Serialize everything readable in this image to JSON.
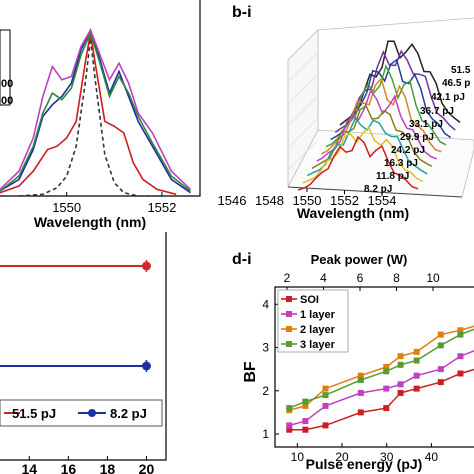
{
  "panel_labels": {
    "b": "b-i",
    "d": "d-i"
  },
  "chart_data": [
    {
      "id": "panel-a-spectra",
      "type": "line",
      "xlabel": "Wavelength (nm)",
      "x_ticks": [
        "1550",
        "1552"
      ],
      "xlim": [
        1548.6,
        1552.8
      ],
      "legend_fragments": [
        "00",
        "00"
      ],
      "series": [
        {
          "color": "#333333",
          "style": "dashed",
          "x": [
            1549.0,
            1549.5,
            1549.8,
            1550.0,
            1550.2,
            1550.4,
            1550.5,
            1550.6,
            1550.8,
            1551.0,
            1551.2,
            1551.5,
            1552.0
          ],
          "y": [
            0.0,
            0.01,
            0.05,
            0.12,
            0.3,
            0.7,
            0.95,
            0.7,
            0.25,
            0.08,
            0.02,
            0.0,
            0.0
          ]
        },
        {
          "color": "#cc1f1f",
          "x": [
            1548.6,
            1549.0,
            1549.3,
            1549.6,
            1549.8,
            1550.0,
            1550.2,
            1550.4,
            1550.5,
            1550.6,
            1550.8,
            1551.0,
            1551.2,
            1551.4,
            1551.6,
            1551.9,
            1552.3
          ],
          "y": [
            0.02,
            0.06,
            0.15,
            0.28,
            0.3,
            0.35,
            0.45,
            0.82,
            0.98,
            0.8,
            0.45,
            0.42,
            0.38,
            0.2,
            0.1,
            0.04,
            0.01
          ]
        },
        {
          "color": "#1f2f9f",
          "x": [
            1548.6,
            1549.0,
            1549.3,
            1549.5,
            1549.7,
            1549.9,
            1550.1,
            1550.3,
            1550.5,
            1550.7,
            1550.9,
            1551.1,
            1551.3,
            1551.5,
            1551.8,
            1552.2,
            1552.6
          ],
          "y": [
            0.03,
            0.1,
            0.28,
            0.48,
            0.55,
            0.6,
            0.68,
            0.88,
            1.0,
            0.82,
            0.62,
            0.75,
            0.6,
            0.45,
            0.3,
            0.1,
            0.02
          ]
        },
        {
          "color": "#2a8a3a",
          "x": [
            1548.6,
            1549.0,
            1549.3,
            1549.5,
            1549.7,
            1549.9,
            1550.1,
            1550.3,
            1550.5,
            1550.7,
            1550.9,
            1551.1,
            1551.3,
            1551.5,
            1551.8,
            1552.2,
            1552.6
          ],
          "y": [
            0.03,
            0.12,
            0.3,
            0.5,
            0.62,
            0.58,
            0.65,
            0.85,
            0.98,
            0.8,
            0.6,
            0.72,
            0.62,
            0.48,
            0.32,
            0.12,
            0.03
          ]
        },
        {
          "color": "#c040c0",
          "x": [
            1548.6,
            1549.0,
            1549.3,
            1549.5,
            1549.7,
            1549.9,
            1550.1,
            1550.3,
            1550.5,
            1550.7,
            1550.9,
            1551.1,
            1551.3,
            1551.5,
            1551.8,
            1552.2,
            1552.6
          ],
          "y": [
            0.04,
            0.15,
            0.35,
            0.6,
            0.78,
            0.7,
            0.72,
            0.9,
            1.0,
            0.85,
            0.7,
            0.8,
            0.68,
            0.5,
            0.38,
            0.15,
            0.04
          ]
        }
      ]
    },
    {
      "id": "panel-b-3d-spectra",
      "type": "line",
      "xlabel": "Wavelength (nm)",
      "x_ticks": [
        "1546",
        "1548",
        "1550",
        "1552",
        "1554"
      ],
      "energy_labels": [
        "51.5",
        "46.5 p",
        "42.1 pJ",
        "36.7 pJ",
        "33.1 pJ",
        "29.9 pJ",
        "24.2 pJ",
        "16.3 pJ",
        "11.8 pJ",
        "8.2 pJ"
      ],
      "series_colors": [
        "#222222",
        "#7030a0",
        "#1f3fa0",
        "#3fa03f",
        "#e08020",
        "#c040c0",
        "#808020",
        "#20a0a0",
        "#e0c020",
        "#cc1f1f"
      ]
    },
    {
      "id": "panel-c-trend",
      "type": "line",
      "x_ticks": [
        "14",
        "16",
        "18",
        "20"
      ],
      "xlim": [
        12.5,
        21
      ],
      "legend": [
        "51.5 pJ",
        "8.2 pJ"
      ],
      "series": [
        {
          "name": "51.5 pJ",
          "color": "#cc2a2a",
          "x": [
            20
          ],
          "y": [
            0.8
          ]
        },
        {
          "name": "8.2 pJ",
          "color": "#1f2fa8",
          "x": [
            20
          ],
          "y": [
            0.2
          ]
        }
      ]
    },
    {
      "id": "panel-d-bf",
      "type": "line",
      "title": "d-i",
      "xlabel": "Pulse energy (pJ)",
      "ylabel": "BF",
      "top_axis_label": "Peak power (W)",
      "x_ticks": [
        "10",
        "20",
        "30",
        "40"
      ],
      "top_ticks": [
        "2",
        "4",
        "6",
        "8",
        "10"
      ],
      "y_ticks": [
        "1",
        "2",
        "3",
        "4"
      ],
      "xlim": [
        5,
        52
      ],
      "ylim": [
        0.7,
        4.4
      ],
      "legend": [
        "SOI",
        "1 layer",
        "2 layer",
        "3 layer"
      ],
      "series": [
        {
          "name": "SOI",
          "color": "#cc1f1f",
          "x": [
            8.2,
            11.8,
            16.3,
            24.2,
            29.9,
            33.1,
            36.7,
            42.1,
            46.5,
            51.5
          ],
          "y": [
            1.1,
            1.1,
            1.2,
            1.5,
            1.6,
            1.95,
            2.05,
            2.2,
            2.4,
            2.55
          ]
        },
        {
          "name": "1 layer",
          "color": "#c040c0",
          "x": [
            8.2,
            11.8,
            16.3,
            24.2,
            29.9,
            33.1,
            36.7,
            42.1,
            46.5,
            51.5
          ],
          "y": [
            1.2,
            1.3,
            1.65,
            1.95,
            2.05,
            2.15,
            2.35,
            2.5,
            2.8,
            3.0
          ]
        },
        {
          "name": "2 layer",
          "color": "#e07f10",
          "x": [
            8.2,
            11.8,
            16.3,
            24.2,
            29.9,
            33.1,
            36.7,
            42.1,
            46.5,
            51.5
          ],
          "y": [
            1.55,
            1.65,
            2.05,
            2.35,
            2.55,
            2.8,
            2.9,
            3.3,
            3.4,
            3.55
          ]
        },
        {
          "name": "3 layer",
          "color": "#5a9a32",
          "x": [
            8.2,
            11.8,
            16.3,
            24.2,
            29.9,
            33.1,
            36.7,
            42.1,
            46.5,
            51.5
          ],
          "y": [
            1.6,
            1.75,
            1.9,
            2.25,
            2.45,
            2.6,
            2.7,
            3.05,
            3.3,
            3.5
          ]
        }
      ]
    }
  ]
}
